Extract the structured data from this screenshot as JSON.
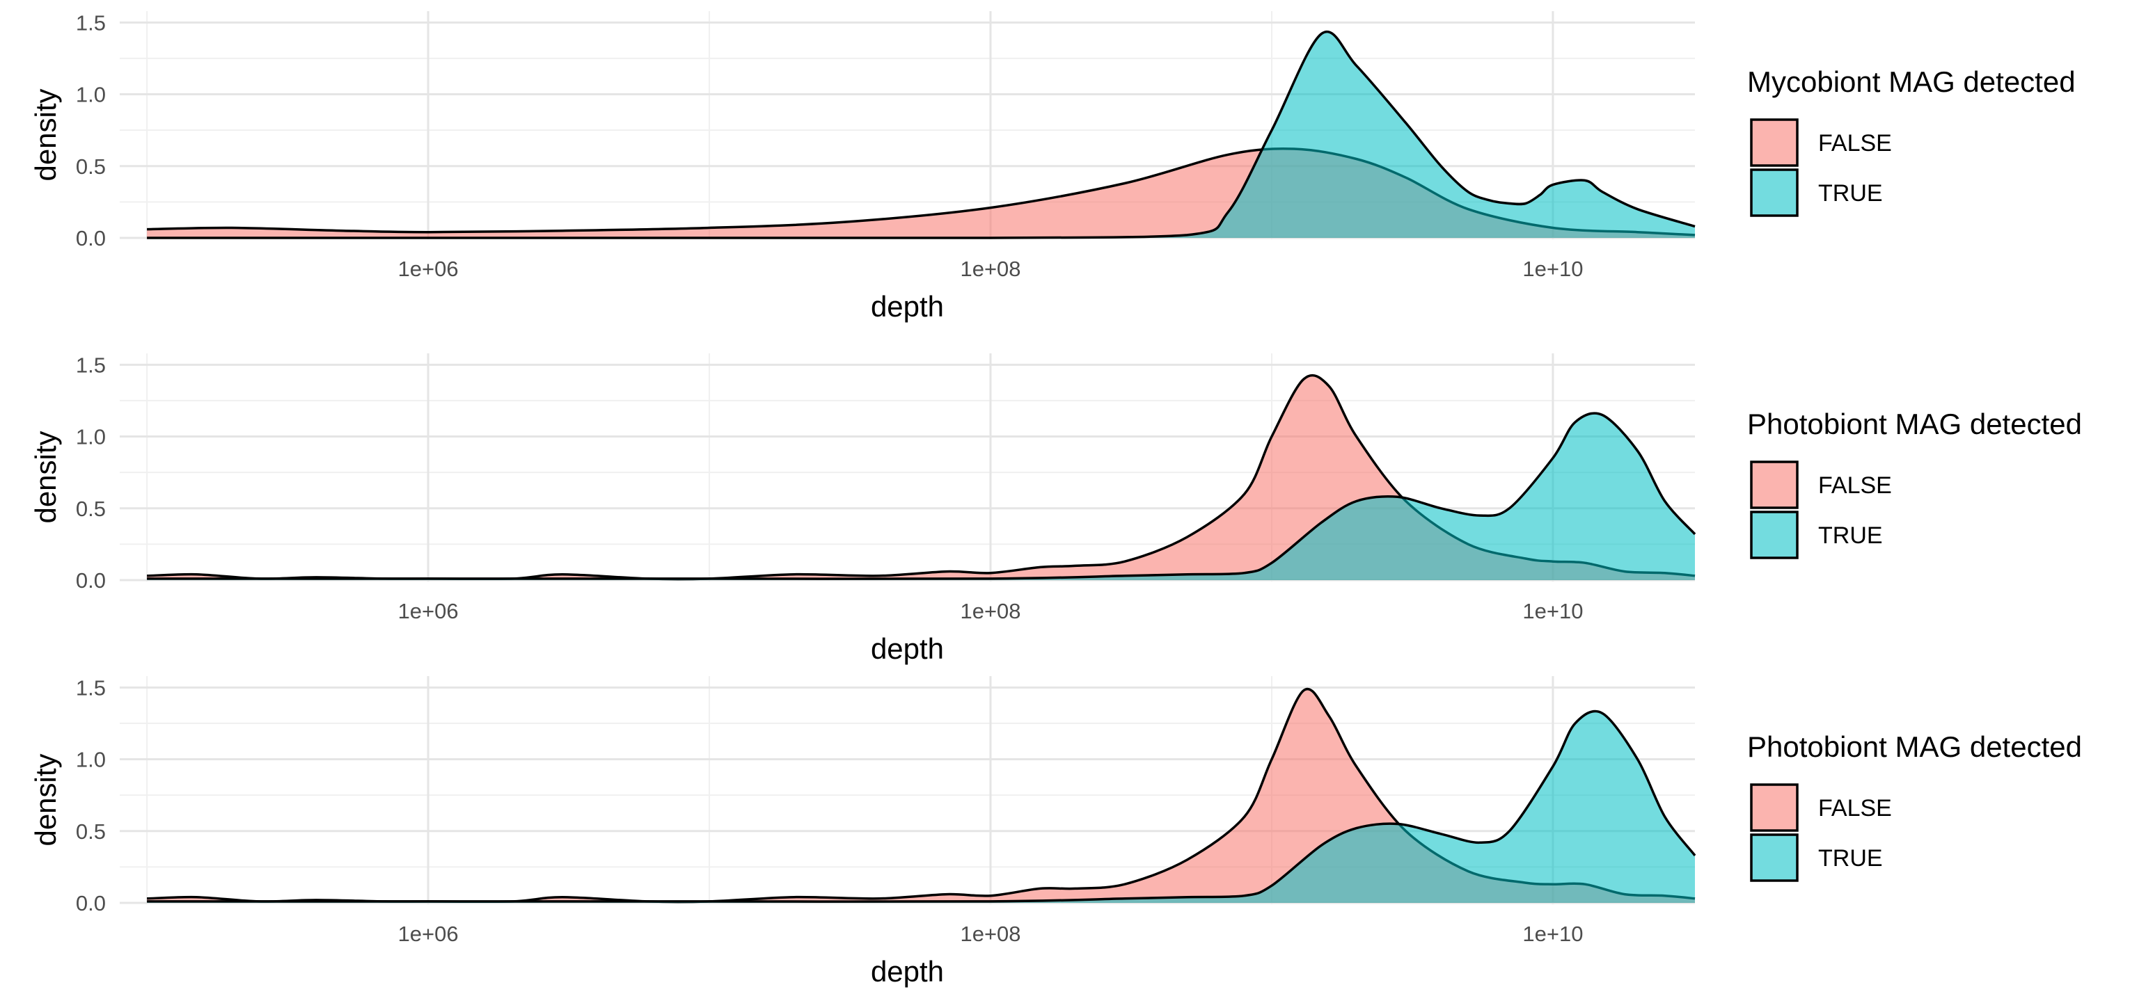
{
  "chart_data": [
    {
      "type": "area",
      "subtype": "density",
      "x_scale": "log10",
      "xlabel": "depth",
      "ylabel": "density",
      "xlim": [
        80000.0,
        32000000000.0
      ],
      "ylim": [
        0,
        1.55
      ],
      "x_ticks": [
        {
          "value": 1000000.0,
          "label": "1e+06"
        },
        {
          "value": 100000000.0,
          "label": "1e+08"
        },
        {
          "value": 10000000000.0,
          "label": "1e+10"
        }
      ],
      "y_ticks": [
        {
          "value": 0.0,
          "label": "0.0"
        },
        {
          "value": 0.5,
          "label": "0.5"
        },
        {
          "value": 1.0,
          "label": "1.0"
        },
        {
          "value": 1.5,
          "label": "1.5"
        }
      ],
      "grid": true,
      "legend": {
        "title": "Mycobiont MAG detected",
        "placement": "right"
      },
      "series": [
        {
          "name": "FALSE",
          "color": "#F8766D",
          "x": [
            100000.0,
            200000.0,
            500000.0,
            1000000.0,
            3000000.0,
            10000000.0,
            30000000.0,
            100000000.0,
            300000000.0,
            700000000.0,
            1200000000.0,
            2000000000.0,
            3000000000.0,
            5000000000.0,
            10000000000.0,
            20000000000.0,
            32000000000.0
          ],
          "y": [
            0.06,
            0.07,
            0.05,
            0.04,
            0.05,
            0.07,
            0.11,
            0.21,
            0.38,
            0.58,
            0.62,
            0.55,
            0.42,
            0.2,
            0.07,
            0.04,
            0.02
          ]
        },
        {
          "name": "TRUE",
          "color": "#00BFC4",
          "x": [
            100000.0,
            10000000.0,
            100000000.0,
            500000000.0,
            700000000.0,
            1000000000.0,
            1500000000.0,
            2000000000.0,
            3000000000.0,
            4000000000.0,
            5000000000.0,
            6000000000.0,
            7000000000.0,
            8000000000.0,
            9000000000.0,
            10000000000.0,
            13000000000.0,
            15000000000.0,
            20000000000.0,
            32000000000.0
          ],
          "y": [
            0,
            0,
            0,
            0.02,
            0.18,
            0.75,
            1.42,
            1.2,
            0.8,
            0.5,
            0.32,
            0.26,
            0.24,
            0.24,
            0.3,
            0.37,
            0.4,
            0.32,
            0.2,
            0.08
          ]
        }
      ]
    },
    {
      "type": "area",
      "subtype": "density",
      "x_scale": "log10",
      "xlabel": "depth",
      "ylabel": "density",
      "xlim": [
        80000.0,
        32000000000.0
      ],
      "ylim": [
        0,
        1.55
      ],
      "x_ticks": [
        {
          "value": 1000000.0,
          "label": "1e+06"
        },
        {
          "value": 100000000.0,
          "label": "1e+08"
        },
        {
          "value": 10000000000.0,
          "label": "1e+10"
        }
      ],
      "y_ticks": [
        {
          "value": 0.0,
          "label": "0.0"
        },
        {
          "value": 0.5,
          "label": "0.5"
        },
        {
          "value": 1.0,
          "label": "1.0"
        },
        {
          "value": 1.5,
          "label": "1.5"
        }
      ],
      "grid": true,
      "legend": {
        "title": "Photobiont MAG detected",
        "placement": "right"
      },
      "series": [
        {
          "name": "FALSE",
          "color": "#F8766D",
          "x": [
            100000.0,
            150000.0,
            250000.0,
            400000.0,
            700000.0,
            1000000.0,
            2000000.0,
            3000000.0,
            6000000.0,
            10000000.0,
            20000000.0,
            40000000.0,
            70000000.0,
            100000000.0,
            150000000.0,
            200000000.0,
            300000000.0,
            500000000.0,
            800000000.0,
            1000000000.0,
            1300000000.0,
            1600000000.0,
            2000000000.0,
            3000000000.0,
            5000000000.0,
            8000000000.0,
            10000000000.0,
            13000000000.0,
            18000000000.0,
            25000000000.0,
            32000000000.0
          ],
          "y": [
            0.03,
            0.04,
            0.01,
            0.02,
            0.01,
            0.01,
            0.01,
            0.04,
            0.01,
            0.01,
            0.04,
            0.03,
            0.06,
            0.05,
            0.09,
            0.1,
            0.13,
            0.3,
            0.6,
            1.0,
            1.4,
            1.35,
            1.0,
            0.55,
            0.25,
            0.15,
            0.13,
            0.12,
            0.06,
            0.05,
            0.03
          ]
        },
        {
          "name": "TRUE",
          "color": "#00BFC4",
          "x": [
            100000.0,
            1000000.0,
            10000000.0,
            100000000.0,
            300000000.0,
            500000000.0,
            800000000.0,
            1000000000.0,
            1500000000.0,
            2000000000.0,
            2800000000.0,
            4000000000.0,
            5500000000.0,
            7000000000.0,
            10000000000.0,
            12000000000.0,
            15000000000.0,
            20000000000.0,
            25000000000.0,
            32000000000.0
          ],
          "y": [
            0.01,
            0.01,
            0.01,
            0.01,
            0.03,
            0.04,
            0.05,
            0.12,
            0.4,
            0.55,
            0.58,
            0.5,
            0.45,
            0.5,
            0.85,
            1.1,
            1.15,
            0.9,
            0.55,
            0.32
          ]
        }
      ]
    },
    {
      "type": "area",
      "subtype": "density",
      "x_scale": "log10",
      "xlabel": "depth",
      "ylabel": "density",
      "xlim": [
        80000.0,
        32000000000.0
      ],
      "ylim": [
        0,
        1.55
      ],
      "x_ticks": [
        {
          "value": 1000000.0,
          "label": "1e+06"
        },
        {
          "value": 100000000.0,
          "label": "1e+08"
        },
        {
          "value": 10000000000.0,
          "label": "1e+10"
        }
      ],
      "y_ticks": [
        {
          "value": 0.0,
          "label": "0.0"
        },
        {
          "value": 0.5,
          "label": "0.5"
        },
        {
          "value": 1.0,
          "label": "1.0"
        },
        {
          "value": 1.5,
          "label": "1.5"
        }
      ],
      "grid": true,
      "legend": {
        "title": "Photobiont MAG detected",
        "placement": "right"
      },
      "series": [
        {
          "name": "FALSE",
          "color": "#F8766D",
          "x": [
            100000.0,
            150000.0,
            250000.0,
            400000.0,
            700000.0,
            1000000.0,
            2000000.0,
            3000000.0,
            6000000.0,
            10000000.0,
            20000000.0,
            40000000.0,
            70000000.0,
            100000000.0,
            150000000.0,
            200000000.0,
            300000000.0,
            500000000.0,
            800000000.0,
            1000000000.0,
            1300000000.0,
            1600000000.0,
            2000000000.0,
            3000000000.0,
            5000000000.0,
            8000000000.0,
            10000000000.0,
            13000000000.0,
            18000000000.0,
            25000000000.0,
            32000000000.0
          ],
          "y": [
            0.03,
            0.04,
            0.01,
            0.02,
            0.01,
            0.01,
            0.01,
            0.04,
            0.01,
            0.01,
            0.04,
            0.03,
            0.06,
            0.05,
            0.1,
            0.1,
            0.13,
            0.3,
            0.6,
            1.0,
            1.48,
            1.3,
            0.95,
            0.5,
            0.22,
            0.14,
            0.13,
            0.13,
            0.06,
            0.05,
            0.03
          ]
        },
        {
          "name": "TRUE",
          "color": "#00BFC4",
          "x": [
            100000.0,
            1000000.0,
            10000000.0,
            100000000.0,
            300000000.0,
            500000000.0,
            800000000.0,
            1000000000.0,
            1500000000.0,
            2000000000.0,
            2800000000.0,
            4000000000.0,
            5500000000.0,
            7000000000.0,
            10000000000.0,
            12000000000.0,
            15000000000.0,
            20000000000.0,
            25000000000.0,
            32000000000.0
          ],
          "y": [
            0.01,
            0.01,
            0.01,
            0.01,
            0.03,
            0.04,
            0.05,
            0.12,
            0.4,
            0.52,
            0.55,
            0.48,
            0.42,
            0.5,
            0.95,
            1.25,
            1.32,
            1.0,
            0.6,
            0.33
          ]
        }
      ]
    }
  ]
}
